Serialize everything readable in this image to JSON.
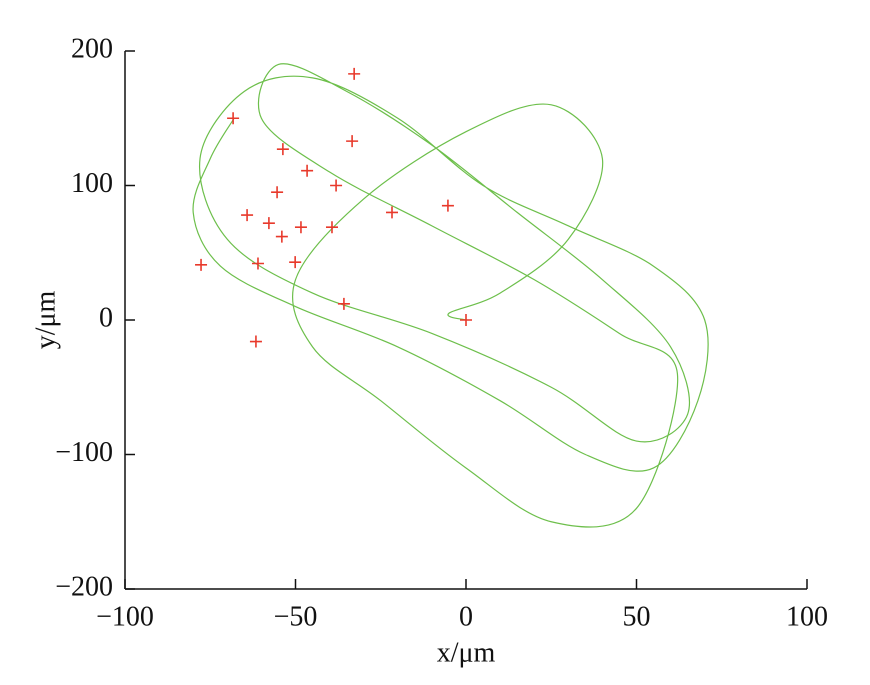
{
  "chart_data": {
    "type": "scatter",
    "x_label": "x/μm",
    "y_label": "y/μm",
    "xlim": [
      -100,
      100
    ],
    "ylim": [
      -200,
      200
    ],
    "xticks": [
      {
        "value": -100,
        "label": "−100"
      },
      {
        "value": -50,
        "label": "−50"
      },
      0,
      50,
      100
    ],
    "yticks": [
      {
        "value": -200,
        "label": "−200"
      },
      {
        "value": -100,
        "label": "−100"
      },
      0,
      100,
      200
    ],
    "series": [
      {
        "kind": "line",
        "color": "#6dbf4b",
        "x": [
          -68,
          -75,
          -80,
          -72,
          -50,
          -20,
          10,
          35,
          55,
          68,
          70,
          55,
          30,
          5,
          -20,
          -45,
          -65,
          -78,
          -70,
          -45,
          -10,
          25,
          50,
          65,
          60,
          40,
          15,
          -10,
          -35,
          -55,
          -60,
          -40,
          -10,
          20,
          45,
          62,
          50,
          25,
          0,
          -25,
          -45,
          -50,
          -30,
          0,
          25,
          40,
          30,
          10,
          -5,
          0
        ],
        "values": [
          150,
          120,
          80,
          40,
          10,
          -20,
          -60,
          -100,
          -110,
          -60,
          0,
          40,
          70,
          100,
          150,
          180,
          170,
          120,
          60,
          20,
          -10,
          -50,
          -90,
          -70,
          -20,
          30,
          80,
          130,
          170,
          190,
          150,
          110,
          70,
          30,
          -10,
          -40,
          -140,
          -150,
          -110,
          -60,
          -20,
          30,
          90,
          140,
          160,
          120,
          60,
          20,
          5,
          0
        ]
      },
      {
        "kind": "marker",
        "color": "#e8392b",
        "x": [
          -68.3,
          -32.8,
          -53.7,
          -33.4,
          -46.6,
          -55.4,
          -38.1,
          -64.2,
          -57.8,
          -54,
          -48.4,
          -39.3,
          -21.7,
          -5.3,
          -77.7,
          -61,
          -50.1,
          -35.8,
          0,
          -61.6
        ],
        "values": [
          150,
          183,
          127,
          133,
          111,
          95,
          100,
          78,
          72,
          62,
          69,
          69,
          80,
          85,
          41,
          42,
          43,
          12,
          0,
          -16
        ]
      }
    ]
  }
}
